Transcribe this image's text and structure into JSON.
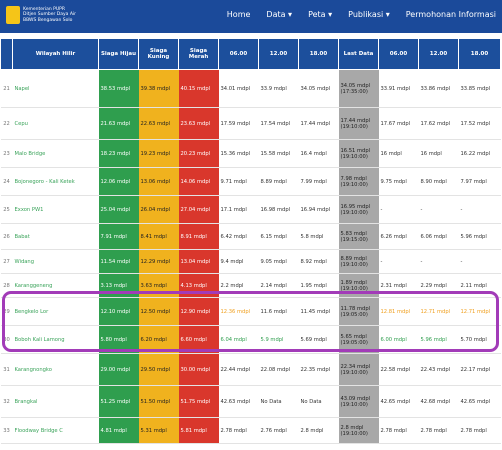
{
  "header": {
    "logo_lines": [
      "Kementerian PUPR",
      "Ditjen Sumber Daya Air",
      "BBWS Bengawan Solo"
    ],
    "nav": [
      "Home",
      "Data",
      "Peta",
      "Publikasi",
      "Permohonan Informasi"
    ]
  },
  "table": {
    "columns": [
      "Wilayah Hilir",
      "Siaga Hijau",
      "Siaga Kuning",
      "Siaga Merah",
      "06.00",
      "12.00",
      "18.00",
      "Last Data",
      "06.00",
      "12.00",
      "18.00"
    ],
    "rows": [
      {
        "no": "21",
        "name": "Napel",
        "cells": [
          "38.53 mdpl",
          "39.38 mdpl",
          "40.15 mdpl",
          "34.01 mdpl",
          "33.9 mdpl",
          "34.05 mdpl",
          "34.05 mdpl",
          "33.91 mdpl",
          "33.86 mdpl",
          "33.85 mdpl"
        ],
        "time": "(17:35:00)"
      },
      {
        "no": "22",
        "name": "Cepu",
        "cells": [
          "21.63 mdpl",
          "22.63 mdpl",
          "23.63 mdpl",
          "17.59 mdpl",
          "17.54 mdpl",
          "17.44 mdpl",
          "17.44 mdpl",
          "17.67 mdpl",
          "17.62 mdpl",
          "17.52 mdpl"
        ],
        "time": "(19:10:00)"
      },
      {
        "no": "23",
        "name": "Malo Bridge",
        "cells": [
          "18.23 mdpl",
          "19.23 mdpl",
          "20.23 mdpl",
          "15.36 mdpl",
          "15.58 mdpl",
          "16.4 mdpl",
          "16.51 mdpl",
          "16 mdpl",
          "16 mdpl",
          "16.22 mdpl"
        ],
        "time": "(19:10:00)"
      },
      {
        "no": "24",
        "name": "Bojonegoro - Kali Ketek",
        "cells": [
          "12.06 mdpl",
          "13.06 mdpl",
          "14.06 mdpl",
          "9.71 mdpl",
          "8.89 mdpl",
          "7.99 mdpl",
          "7.98 mdpl",
          "9.75 mdpl",
          "8.90 mdpl",
          "7.97 mdpl"
        ],
        "time": "(19:10:00)"
      },
      {
        "no": "25",
        "name": "Exxon PW1",
        "cells": [
          "25.04 mdpl",
          "26.04 mdpl",
          "27.04 mdpl",
          "17.1 mdpl",
          "16.98 mdpl",
          "16.94 mdpl",
          "16.95 mdpl",
          "-",
          "-",
          "-"
        ],
        "time": "(19:10:00)"
      },
      {
        "no": "26",
        "name": "Babat",
        "cells": [
          "7.91 mdpl",
          "8.41 mdpl",
          "8.91 mdpl",
          "6.42 mdpl",
          "6.15 mdpl",
          "5.8 mdpl",
          "5.83 mdpl",
          "6.26 mdpl",
          "6.06 mdpl",
          "5.96 mdpl"
        ],
        "time": "(19:15:00)"
      },
      {
        "no": "27",
        "name": "Widang",
        "cells": [
          "11.54 mdpl",
          "12.29 mdpl",
          "13.04 mdpl",
          "9.4 mdpl",
          "9.05 mdpl",
          "8.92 mdpl",
          "8.89 mdpl",
          "-",
          "-",
          "-"
        ],
        "time": "(19:10:00)"
      },
      {
        "no": "28",
        "name": "Karanggeneng",
        "cells": [
          "3.13 mdpl",
          "3.63 mdpl",
          "4.13 mdpl",
          "2.2 mdpl",
          "2.14 mdpl",
          "1.95 mdpl",
          "1.89 mdpl",
          "2.31 mdpl",
          "2.29 mdpl",
          "2.11 mdpl"
        ],
        "time": "(19:10:00)"
      },
      {
        "no": "29",
        "name": "Bengkelo Lor",
        "cells": [
          "12.10 mdpl",
          "12.50 mdpl",
          "12.90 mdpl",
          "12.36 mdpl",
          "11.6 mdpl",
          "11.45 mdpl",
          "11.78 mdpl",
          "12.81 mdpl",
          "12.71 mdpl",
          "12.71 mdpl"
        ],
        "time": "(19:05:00)"
      },
      {
        "no": "30",
        "name": "Boboh Kali Lamong",
        "cells": [
          "5.80 mdpl",
          "6.20 mdpl",
          "6.60 mdpl",
          "6.04 mdpl",
          "5.9 mdpl",
          "5.69 mdpl",
          "5.65 mdpl",
          "6.00 mdpl",
          "5.96 mdpl",
          "5.70 mdpl"
        ],
        "time": "(19:05:00)"
      },
      {
        "no": "31",
        "name": "Karangnongko",
        "cells": [
          "29.00 mdpl",
          "29.50 mdpl",
          "30.00 mdpl",
          "22.44 mdpl",
          "22.08 mdpl",
          "22.35 mdpl",
          "22.34 mdpl",
          "22.58 mdpl",
          "22.43 mdpl",
          "22.17 mdpl"
        ],
        "time": "(19:10:00)"
      },
      {
        "no": "32",
        "name": "Brangkal",
        "cells": [
          "51.25 mdpl",
          "51.50 mdpl",
          "51.75 mdpl",
          "42.63 mdpl",
          "No Data",
          "No Data",
          "43.09 mdpl",
          "42.65 mdpl",
          "42.68 mdpl",
          "42.65 mdpl"
        ],
        "time": "(19:10:00)"
      },
      {
        "no": "33",
        "name": "Floodway Bridge C",
        "cells": [
          "4.81 mdpl",
          "5.31 mdpl",
          "5.81 mdpl",
          "2.78 mdpl",
          "2.76 mdpl",
          "2.8 mdpl",
          "2.8 mdpl",
          "2.78 mdpl",
          "2.78 mdpl",
          "2.78 mdpl"
        ],
        "time": "(19:10:00)"
      }
    ]
  }
}
